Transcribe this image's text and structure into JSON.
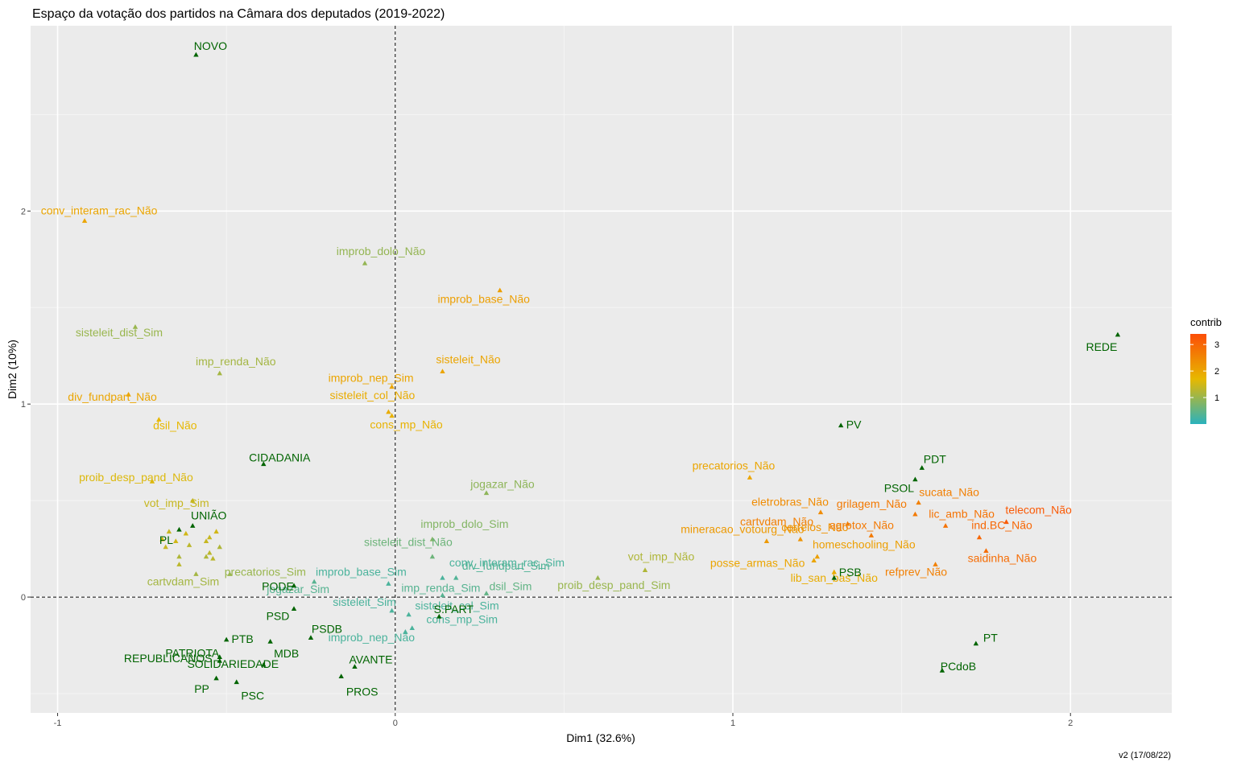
{
  "chart_data": {
    "type": "scatter",
    "title": "Espaço da votação dos partidos na Câmara dos deputados (2019-2022)",
    "xlabel": "Dim1 (32.6%)",
    "ylabel": "Dim2 (10%)",
    "xlim": [
      -1.08,
      2.3
    ],
    "ylim": [
      -0.6,
      2.96
    ],
    "x_ticks": [
      -1,
      0,
      1,
      2
    ],
    "y_ticks": [
      0,
      1,
      2
    ],
    "x_tick_labels": [
      "-1",
      "0",
      "1",
      "2"
    ],
    "y_tick_labels": [
      "0",
      "1",
      "2"
    ],
    "grid": true,
    "reference_lines": {
      "x": 0,
      "y": 0
    },
    "legend": {
      "title": "contrib",
      "placement": "right",
      "ticks": [
        1,
        2,
        3
      ],
      "tick_labels": [
        "1",
        "2",
        "3"
      ],
      "range": [
        0,
        3.4
      ],
      "colors": [
        "#2ab2bd",
        "#e7b800",
        "#fc4e07"
      ]
    },
    "caption": "v2 (17/08/22)",
    "party_color": "#006400",
    "parties": [
      {
        "label": "NOVO",
        "x": -0.59,
        "y": 2.81
      },
      {
        "label": "CIDADANIA",
        "x": -0.39,
        "y": 0.69
      },
      {
        "label": "UNIÃO",
        "x": -0.6,
        "y": 0.37
      },
      {
        "label": "PL",
        "x": -0.64,
        "y": 0.35
      },
      {
        "label": "PODE",
        "x": -0.3,
        "y": 0.06
      },
      {
        "label": "PSD",
        "x": -0.3,
        "y": -0.06
      },
      {
        "label": "PTB",
        "x": -0.5,
        "y": -0.22
      },
      {
        "label": "PATRIOTA",
        "x": -0.52,
        "y": -0.31
      },
      {
        "label": "REPUBLICANOS",
        "x": -0.52,
        "y": -0.33
      },
      {
        "label": "PP",
        "x": -0.53,
        "y": -0.42
      },
      {
        "label": "PSC",
        "x": -0.47,
        "y": -0.44
      },
      {
        "label": "SOLIDARIEDADE",
        "x": -0.39,
        "y": -0.35
      },
      {
        "label": "MDB",
        "x": -0.37,
        "y": -0.23
      },
      {
        "label": "PSDB",
        "x": -0.25,
        "y": -0.21
      },
      {
        "label": "AVANTE",
        "x": -0.12,
        "y": -0.36
      },
      {
        "label": "PROS",
        "x": -0.16,
        "y": -0.41
      },
      {
        "label": "S.PART",
        "x": 0.13,
        "y": -0.1
      },
      {
        "label": "PV",
        "x": 1.32,
        "y": 0.89
      },
      {
        "label": "PDT",
        "x": 1.56,
        "y": 0.67
      },
      {
        "label": "PSOL",
        "x": 1.54,
        "y": 0.61
      },
      {
        "label": "PSB",
        "x": 1.3,
        "y": 0.1
      },
      {
        "label": "PT",
        "x": 1.72,
        "y": -0.24
      },
      {
        "label": "PCdoB",
        "x": 1.62,
        "y": -0.38
      },
      {
        "label": "REDE",
        "x": 2.14,
        "y": 1.36
      }
    ],
    "categories": [
      {
        "label": "conv_interam_rac_Não",
        "x": -0.92,
        "y": 1.95,
        "contrib": 2.0
      },
      {
        "label": "improb_dolo_Não",
        "x": -0.09,
        "y": 1.73,
        "contrib": 0.95
      },
      {
        "label": "improb_base_Não",
        "x": 0.31,
        "y": 1.59,
        "contrib": 2.1
      },
      {
        "label": "sisteleit_dist_Sim",
        "x": -0.77,
        "y": 1.4,
        "contrib": 1.0
      },
      {
        "label": "imp_renda_Não",
        "x": -0.52,
        "y": 1.16,
        "contrib": 1.1
      },
      {
        "label": "sisteleit_Não",
        "x": 0.14,
        "y": 1.17,
        "contrib": 2.0
      },
      {
        "label": "improb_nep_Sim",
        "x": -0.01,
        "y": 1.09,
        "contrib": 2.0
      },
      {
        "label": "sisteleit_col_Não",
        "x": -0.02,
        "y": 0.96,
        "contrib": 1.9
      },
      {
        "label": "cons_mp_Não",
        "x": -0.01,
        "y": 0.94,
        "contrib": 1.8
      },
      {
        "label": "div_fundpart_Não",
        "x": -0.79,
        "y": 1.05,
        "contrib": 2.0
      },
      {
        "label": "dsil_Não",
        "x": -0.7,
        "y": 0.92,
        "contrib": 1.7
      },
      {
        "label": "proib_desp_pand_Não",
        "x": -0.72,
        "y": 0.6,
        "contrib": 1.6
      },
      {
        "label": "vot_imp_Sim",
        "x": -0.6,
        "y": 0.5,
        "contrib": 1.4
      },
      {
        "label": "jogazar_Não",
        "x": 0.27,
        "y": 0.54,
        "contrib": 0.9
      },
      {
        "label": "precatorios_Sim",
        "x": -0.49,
        "y": 0.12,
        "contrib": 1.0
      },
      {
        "label": "cartvdam_Sim",
        "x": -0.59,
        "y": 0.12,
        "contrib": 1.1
      },
      {
        "label": "improb_dolo_Sim",
        "x": 0.11,
        "y": 0.3,
        "contrib": 0.8
      },
      {
        "label": "sisteleit_dist_Não",
        "x": 0.11,
        "y": 0.21,
        "contrib": 0.6
      },
      {
        "label": "conv_interam_rac_Sim",
        "x": 0.14,
        "y": 0.1,
        "contrib": 0.3
      },
      {
        "label": "div_fundpart_Sim",
        "x": 0.18,
        "y": 0.1,
        "contrib": 0.35
      },
      {
        "label": "improb_base_Sim",
        "x": -0.02,
        "y": 0.07,
        "contrib": 0.3
      },
      {
        "label": "jogazar_Sim",
        "x": -0.24,
        "y": 0.08,
        "contrib": 0.4
      },
      {
        "label": "imp_renda_Sim",
        "x": 0.14,
        "y": 0.01,
        "contrib": 0.4
      },
      {
        "label": "dsil_Sim",
        "x": 0.27,
        "y": 0.02,
        "contrib": 0.5
      },
      {
        "label": "sisteleit_Sim",
        "x": -0.01,
        "y": -0.07,
        "contrib": 0.3
      },
      {
        "label": "sisteleit_col_Sim",
        "x": 0.04,
        "y": -0.09,
        "contrib": 0.3
      },
      {
        "label": "cons_mp_Sim",
        "x": 0.05,
        "y": -0.16,
        "contrib": 0.3
      },
      {
        "label": "improb_nep_Não",
        "x": 0.03,
        "y": -0.18,
        "contrib": 0.3
      },
      {
        "label": "proib_desp_pand_Sim",
        "x": 0.6,
        "y": 0.1,
        "contrib": 1.0
      },
      {
        "label": "vot_imp_Não",
        "x": 0.74,
        "y": 0.14,
        "contrib": 1.2
      },
      {
        "label": "precatorios_Não",
        "x": 1.05,
        "y": 0.62,
        "contrib": 2.0
      },
      {
        "label": "eletrobras_Não",
        "x": 1.26,
        "y": 0.44,
        "contrib": 2.4
      },
      {
        "label": "cartvdam_Não",
        "x": 1.34,
        "y": 0.38,
        "contrib": 2.6
      },
      {
        "label": "mineracao_votourg_Não",
        "x": 1.1,
        "y": 0.29,
        "contrib": 2.2
      },
      {
        "label": "correios_Não",
        "x": 1.2,
        "y": 0.3,
        "contrib": 2.3
      },
      {
        "label": "grilagem_Não",
        "x": 1.54,
        "y": 0.43,
        "contrib": 2.7
      },
      {
        "label": "sucata_Não",
        "x": 1.55,
        "y": 0.49,
        "contrib": 2.6
      },
      {
        "label": "agrotox_Não",
        "x": 1.41,
        "y": 0.32,
        "contrib": 2.7
      },
      {
        "label": "lic_amb_Não",
        "x": 1.63,
        "y": 0.37,
        "contrib": 2.8
      },
      {
        "label": "telecom_Não",
        "x": 1.81,
        "y": 0.39,
        "contrib": 3.2
      },
      {
        "label": "ind.BC_Não",
        "x": 1.73,
        "y": 0.31,
        "contrib": 3.0
      },
      {
        "label": "homeschooling_Não",
        "x": 1.25,
        "y": 0.21,
        "contrib": 2.1
      },
      {
        "label": "posse_armas_Não",
        "x": 1.24,
        "y": 0.19,
        "contrib": 2.0
      },
      {
        "label": "lib_san_bas_Não",
        "x": 1.3,
        "y": 0.13,
        "contrib": 1.9
      },
      {
        "label": "saidinha_Não",
        "x": 1.75,
        "y": 0.24,
        "contrib": 2.9
      },
      {
        "label": "refprev_Não",
        "x": 1.6,
        "y": 0.17,
        "contrib": 2.6
      },
      {
        "label": "",
        "x": -0.67,
        "y": 0.34,
        "contrib": 1.4
      },
      {
        "label": "",
        "x": -0.62,
        "y": 0.33,
        "contrib": 1.5
      },
      {
        "label": "",
        "x": -0.55,
        "y": 0.31,
        "contrib": 1.4
      },
      {
        "label": "",
        "x": -0.53,
        "y": 0.34,
        "contrib": 1.5
      },
      {
        "label": "",
        "x": -0.69,
        "y": 0.3,
        "contrib": 1.6
      },
      {
        "label": "",
        "x": -0.65,
        "y": 0.29,
        "contrib": 1.5
      },
      {
        "label": "",
        "x": -0.56,
        "y": 0.29,
        "contrib": 1.4
      },
      {
        "label": "",
        "x": -0.61,
        "y": 0.27,
        "contrib": 1.3
      },
      {
        "label": "",
        "x": -0.68,
        "y": 0.26,
        "contrib": 1.4
      },
      {
        "label": "",
        "x": -0.52,
        "y": 0.26,
        "contrib": 1.2
      },
      {
        "label": "",
        "x": -0.55,
        "y": 0.23,
        "contrib": 1.3
      },
      {
        "label": "",
        "x": -0.56,
        "y": 0.21,
        "contrib": 1.2
      },
      {
        "label": "",
        "x": -0.54,
        "y": 0.2,
        "contrib": 1.3
      },
      {
        "label": "",
        "x": -0.64,
        "y": 0.21,
        "contrib": 1.2
      },
      {
        "label": "",
        "x": -0.64,
        "y": 0.17,
        "contrib": 1.3
      }
    ]
  }
}
